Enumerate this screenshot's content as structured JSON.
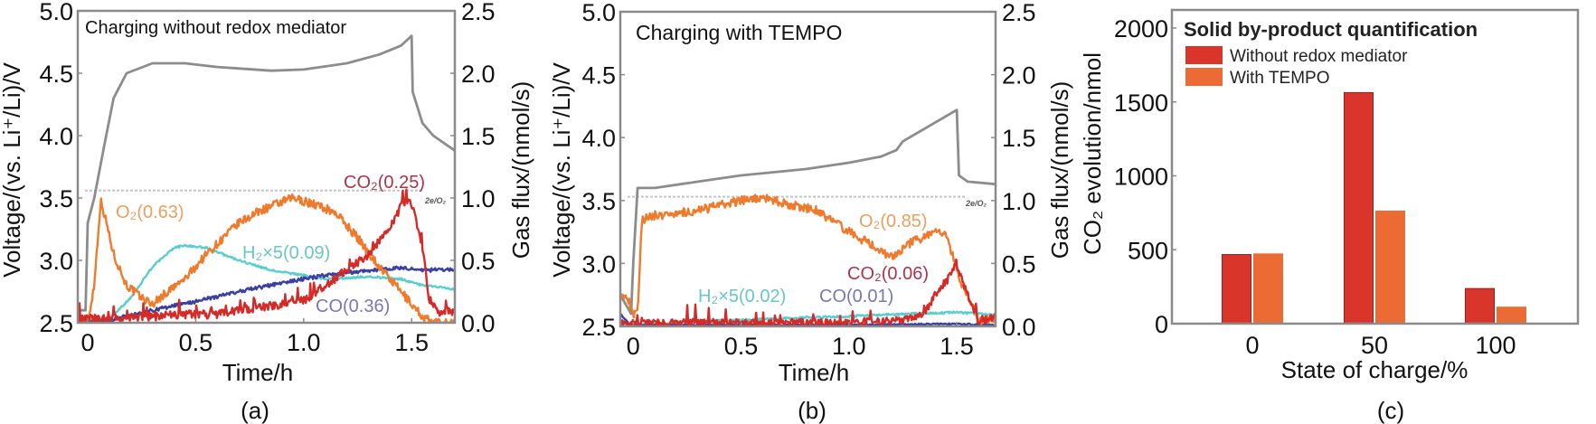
{
  "chart_data": [
    {
      "id": "a",
      "type": "line",
      "title": "Charging without redox mediator",
      "panel_label": "(a)",
      "xlabel": "Time/h",
      "ylabel_left": "Voltage/(vs. Li⁺/Li)/V",
      "ylabel_right": "Gas flux/(nmol/s)",
      "xlim": [
        -0.046,
        1.7
      ],
      "ylim_left": [
        2.5,
        5.0
      ],
      "ylim_right": [
        0.0,
        2.5
      ],
      "xticks": [
        0,
        0.5,
        1.0,
        1.5
      ],
      "xtick_labels": [
        "0",
        "0.5",
        "1.0",
        "1.5"
      ],
      "yticks_left": [
        2.5,
        3.0,
        3.5,
        4.0,
        4.5,
        5.0
      ],
      "ytick_labels_left": [
        "2.5",
        "3.0",
        "3.5",
        "4.0",
        "4.5",
        "5.0"
      ],
      "yticks_right": [
        0.0,
        0.5,
        1.0,
        1.5,
        2.0,
        2.5
      ],
      "ytick_labels_right": [
        "0.0",
        "0.5",
        "1.0",
        "1.5",
        "2.0",
        "2.5"
      ],
      "reference_line": {
        "label": "2e/O₂",
        "value": 1.06,
        "axis": "right"
      },
      "grid": false,
      "voltage": {
        "name": "Voltage",
        "color": "#8c8c8c",
        "t": [
          -0.046,
          -0.01,
          0.0,
          0.03,
          0.08,
          0.12,
          0.18,
          0.3,
          0.45,
          0.6,
          0.85,
          1.0,
          1.2,
          1.35,
          1.45,
          1.5,
          1.505,
          1.55,
          1.6,
          1.7
        ],
        "v": [
          2.6,
          2.6,
          3.3,
          3.5,
          3.95,
          4.3,
          4.5,
          4.58,
          4.58,
          4.55,
          4.52,
          4.53,
          4.58,
          4.65,
          4.72,
          4.8,
          4.35,
          4.1,
          4.0,
          3.88
        ]
      },
      "series": [
        {
          "name": "O2",
          "label": "O₂(0.63)",
          "color": "#f07a2c",
          "label_color": "#e8a060",
          "noise": 0.035,
          "t": [
            -0.046,
            0.0,
            0.03,
            0.06,
            0.08,
            0.12,
            0.18,
            0.25,
            0.3,
            0.35,
            0.45,
            0.55,
            0.7,
            0.8,
            0.95,
            1.05,
            1.15,
            1.25,
            1.35,
            1.45,
            1.55,
            1.6,
            1.7
          ],
          "v": [
            0.0,
            0.0,
            0.3,
            0.98,
            0.85,
            0.55,
            0.3,
            0.2,
            0.15,
            0.22,
            0.35,
            0.55,
            0.8,
            0.9,
            1.0,
            0.95,
            0.88,
            0.68,
            0.45,
            0.25,
            0.05,
            0.0,
            0.0
          ]
        },
        {
          "name": "H2x5",
          "label": "H₂×5(0.09)",
          "color": "#5ccdcd",
          "label_color": "#6cc4c4",
          "noise": 0.008,
          "t": [
            -0.046,
            0.1,
            0.2,
            0.3,
            0.4,
            0.45,
            0.55,
            0.7,
            0.85,
            1.0,
            1.1,
            1.3,
            1.45,
            1.55,
            1.7
          ],
          "v": [
            0.0,
            0.03,
            0.2,
            0.45,
            0.6,
            0.62,
            0.6,
            0.5,
            0.42,
            0.38,
            0.35,
            0.37,
            0.35,
            0.3,
            0.27
          ]
        },
        {
          "name": "CO",
          "label": "CO(0.36)",
          "color": "#3b3fa0",
          "label_color": "#7a77b0",
          "noise": 0.015,
          "t": [
            -0.046,
            0.1,
            0.3,
            0.5,
            0.7,
            0.9,
            1.1,
            1.3,
            1.45,
            1.55,
            1.7
          ],
          "v": [
            0.0,
            0.02,
            0.1,
            0.17,
            0.25,
            0.32,
            0.38,
            0.42,
            0.44,
            0.42,
            0.43
          ]
        },
        {
          "name": "CO2",
          "label": "CO₂(0.25)",
          "color": "#d42a28",
          "label_color": "#a8354a",
          "noise": 0.035,
          "t": [
            -0.046,
            0.2,
            0.4,
            0.6,
            0.7,
            0.9,
            1.0,
            1.1,
            1.2,
            1.3,
            1.4,
            1.46,
            1.5,
            1.55,
            1.58,
            1.62,
            1.7
          ],
          "v": [
            0.03,
            0.04,
            0.06,
            0.07,
            0.1,
            0.15,
            0.18,
            0.3,
            0.42,
            0.55,
            0.75,
            0.97,
            0.95,
            0.6,
            0.2,
            0.08,
            0.1
          ]
        }
      ]
    },
    {
      "id": "b",
      "type": "line",
      "title": "Charging with TEMPO",
      "panel_label": "(b)",
      "xlabel": "Time/h",
      "ylabel_left": "Voltage/(vs. Li⁺/Li)/V",
      "ylabel_right": "Gas flux/(nmol/s)",
      "xlim": [
        -0.06,
        1.68
      ],
      "ylim_left": [
        2.5,
        5.0
      ],
      "ylim_right": [
        0.0,
        2.5
      ],
      "xticks": [
        0,
        0.5,
        1.0,
        1.5
      ],
      "xtick_labels": [
        "0",
        "0.5",
        "1.0",
        "1.5"
      ],
      "yticks_left": [
        2.5,
        3.0,
        3.5,
        4.0,
        4.5,
        5.0
      ],
      "ytick_labels_left": [
        "2.5",
        "3.0",
        "3.5",
        "4.0",
        "4.5",
        "5.0"
      ],
      "yticks_right": [
        0.0,
        0.5,
        1.0,
        1.5,
        2.0,
        2.5
      ],
      "ytick_labels_right": [
        "0.0",
        "0.5",
        "1.0",
        "1.5",
        "2.0",
        "2.5"
      ],
      "reference_line": {
        "label": "2e/O₂",
        "value": 1.03,
        "axis": "right"
      },
      "grid": false,
      "voltage": {
        "name": "Voltage",
        "color": "#8c8c8c",
        "t": [
          -0.06,
          -0.01,
          0.0,
          0.02,
          0.1,
          0.3,
          0.5,
          0.8,
          1.0,
          1.15,
          1.22,
          1.25,
          1.5,
          1.51,
          1.55,
          1.68
        ],
        "v": [
          2.75,
          2.6,
          3.0,
          3.6,
          3.6,
          3.65,
          3.7,
          3.75,
          3.8,
          3.85,
          3.9,
          3.97,
          4.22,
          3.7,
          3.65,
          3.63
        ]
      },
      "series": [
        {
          "name": "O2",
          "label": "O₂(0.85)",
          "color": "#f07a2c",
          "label_color": "#e8a060",
          "noise": 0.035,
          "t": [
            -0.06,
            -0.02,
            0.0,
            0.02,
            0.04,
            0.1,
            0.3,
            0.5,
            0.6,
            0.7,
            0.85,
            1.0,
            1.1,
            1.2,
            1.3,
            1.42,
            1.45,
            1.52,
            1.6,
            1.68
          ],
          "v": [
            0.25,
            0.2,
            0.1,
            0.1,
            0.85,
            0.88,
            0.92,
            1.0,
            1.02,
            0.98,
            0.92,
            0.75,
            0.65,
            0.55,
            0.68,
            0.75,
            0.72,
            0.35,
            0.05,
            0.05
          ]
        },
        {
          "name": "H2x5",
          "label": "H₂×5(0.02)",
          "color": "#5ccdcd",
          "label_color": "#6cc4c4",
          "noise": 0.008,
          "t": [
            -0.06,
            0.1,
            0.3,
            0.5,
            0.8,
            1.0,
            1.3,
            1.5,
            1.6,
            1.68
          ],
          "v": [
            0.02,
            0.02,
            0.04,
            0.05,
            0.07,
            0.08,
            0.1,
            0.11,
            0.1,
            0.09
          ]
        },
        {
          "name": "CO",
          "label": "CO(0.01)",
          "color": "#3b3fa0",
          "label_color": "#7a77b0",
          "noise": 0.006,
          "t": [
            -0.06,
            -0.02,
            0.0,
            0.5,
            1.0,
            1.5,
            1.68
          ],
          "v": [
            0.1,
            0.02,
            0.01,
            0.01,
            0.01,
            0.02,
            0.01
          ]
        },
        {
          "name": "CO2",
          "label": "CO₂(0.06)",
          "color": "#d42a28",
          "label_color": "#a8354a",
          "noise": 0.03,
          "t": [
            -0.06,
            0.1,
            0.5,
            1.0,
            1.25,
            1.35,
            1.4,
            1.45,
            1.5,
            1.55,
            1.6,
            1.68
          ],
          "v": [
            0.02,
            0.03,
            0.03,
            0.03,
            0.05,
            0.1,
            0.25,
            0.35,
            0.48,
            0.25,
            0.05,
            0.07
          ]
        }
      ]
    },
    {
      "id": "c",
      "type": "bar",
      "title": "Solid by-product quantification",
      "panel_label": "(c)",
      "xlabel": "State of charge/%",
      "ylabel": "CO₂ evolution/nmol",
      "categories": [
        "0",
        "50",
        "100"
      ],
      "ylim": [
        0,
        2070
      ],
      "yticks": [
        0,
        500,
        1000,
        1500,
        2000
      ],
      "ytick_labels": [
        "0",
        "500",
        "1000",
        "1500",
        "2000"
      ],
      "grid": false,
      "legend": "top-left",
      "series": [
        {
          "name": "Without redox mediator",
          "color": "#d9352a",
          "values": [
            470,
            1566,
            240
          ]
        },
        {
          "name": "With TEMPO",
          "color": "#ec6b35",
          "values": [
            475,
            765,
            115
          ]
        }
      ]
    }
  ]
}
